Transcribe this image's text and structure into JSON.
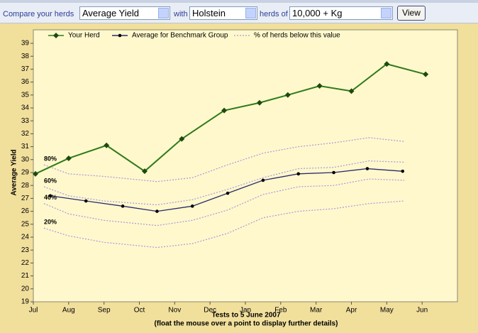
{
  "toolbar": {
    "compare_label": "Compare your herds",
    "measure": "Average Yield",
    "with_label": "with",
    "breed": "Holstein",
    "herds_of_label": "herds of",
    "herd_size": "10,000 + Kg",
    "button": "View"
  },
  "chart_data": {
    "type": "line",
    "xlabel": "Tests to 5 June 2007",
    "caption": "(float the mouse over a point to display further details)",
    "ylabel": "Average Yield",
    "xlim": [
      0,
      12
    ],
    "xticks": [
      {
        "value": 0,
        "label": "Jul"
      },
      {
        "value": 1,
        "label": "Aug"
      },
      {
        "value": 2,
        "label": "Sep"
      },
      {
        "value": 3,
        "label": "Oct"
      },
      {
        "value": 4,
        "label": "Nov"
      },
      {
        "value": 5,
        "label": "Dec"
      },
      {
        "value": 6,
        "label": "Jan"
      },
      {
        "value": 7,
        "label": "Feb"
      },
      {
        "value": 8,
        "label": "Mar"
      },
      {
        "value": 9,
        "label": "Apr"
      },
      {
        "value": 10,
        "label": "May"
      },
      {
        "value": 11,
        "label": "Jun"
      }
    ],
    "ylim": [
      19,
      39
    ],
    "yticks": [
      19,
      20,
      21,
      22,
      23,
      24,
      25,
      26,
      27,
      28,
      29,
      30,
      31,
      32,
      33,
      34,
      35,
      36,
      37,
      38,
      39
    ],
    "grid": false,
    "series": [
      {
        "name": "Your Herd",
        "color": "#2f7a1c",
        "marker": "diamond",
        "x": [
          0.06,
          1.0,
          2.07,
          3.15,
          4.2,
          5.4,
          6.4,
          7.2,
          8.1,
          9.0,
          10.0,
          11.1
        ],
        "values": [
          28.9,
          30.1,
          31.1,
          29.1,
          31.6,
          33.8,
          34.4,
          35.0,
          35.7,
          35.3,
          37.4,
          36.6
        ]
      },
      {
        "name": "Average for Benchmark Group",
        "color": "#2a2a6e",
        "marker": "circle",
        "x": [
          0.48,
          1.49,
          2.53,
          3.5,
          4.5,
          5.5,
          6.5,
          7.5,
          8.5,
          9.45,
          10.45
        ],
        "values": [
          27.2,
          26.8,
          26.4,
          26.0,
          26.4,
          27.4,
          28.4,
          28.9,
          29.0,
          29.3,
          29.1
        ]
      }
    ],
    "percentiles": {
      "name": "% of herds below this value",
      "color": "#a898e0",
      "x": [
        0.3,
        1.0,
        2.0,
        3.5,
        4.5,
        5.5,
        6.5,
        7.5,
        8.5,
        9.5,
        10.5
      ],
      "bands": [
        {
          "label": "80%",
          "values": [
            29.6,
            28.9,
            28.7,
            28.3,
            28.6,
            29.6,
            30.5,
            31.0,
            31.3,
            31.7,
            31.4
          ]
        },
        {
          "label": "60%",
          "values": [
            27.9,
            27.2,
            26.8,
            26.5,
            26.9,
            27.7,
            28.6,
            29.3,
            29.4,
            29.9,
            29.8
          ]
        },
        {
          "label": "40%",
          "values": [
            26.6,
            25.8,
            25.3,
            24.9,
            25.3,
            26.1,
            27.3,
            27.9,
            28.0,
            28.5,
            28.4
          ]
        },
        {
          "label": "20%",
          "values": [
            24.7,
            24.1,
            23.6,
            23.2,
            23.5,
            24.3,
            25.5,
            26.0,
            26.2,
            26.6,
            26.8
          ]
        }
      ]
    }
  }
}
